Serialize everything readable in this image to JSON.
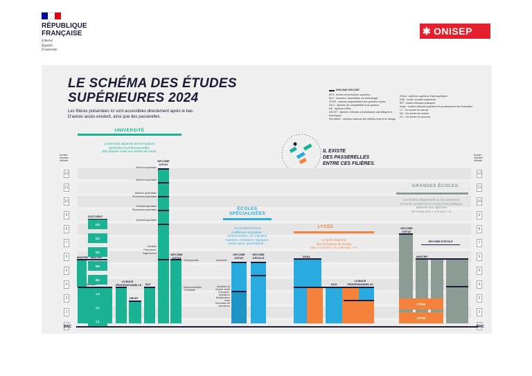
{
  "header": {
    "gov_title_1": "RÉPUBLIQUE",
    "gov_title_2": "FRANÇAISE",
    "motto_1": "Liberté",
    "motto_2": "Égalité",
    "motto_3": "Fraternité",
    "brand": "ONISEP"
  },
  "title_line1": "LE SCHÉMA DES ÉTUDES",
  "title_line2": "SUPÉRIEURES 2024",
  "subtitle_line1": "Les filières présentées ici sont accessibles directement après le bac.",
  "subtitle_line2": "D'autres accès existent, ainsi que des passerelles.",
  "legend": {
    "diplome_delivre": "DIPLÔME DÉLIVRÉ",
    "col1": [
      "BTS : brevet de technicien supérieur",
      "BUT : bachelor universitaire de technologie",
      "CPGE : classes préparatoires aux grandes écoles",
      "DCG : diplôme de comptabilité et de gestion",
      "DE : diplôme d'État",
      "DEUST : diplôme d'études universitaires scientifiques et techniques",
      "DN MADE : diplôme national des métiers d'art et du design"
    ],
    "col2": [
      "DSAA : diplôme supérieur d'arts appliqués",
      "ENS : école normale supérieure",
      "IEP : institut d'études politiques",
      "Inspé : institut national supérieur du professorat et de l'éducation",
      "L1 : 1re année de licence",
      "M1 : 1re année de master",
      "D1 : 1re année de doctorat"
    ]
  },
  "passerelles": {
    "l1": "IL EXISTE",
    "l2": "DES PASSERELLES",
    "l3": "ENTRE CES FILIÈRES."
  },
  "years_label": "Nombre d'années d'études",
  "levels": [
    "12",
    "11",
    "10",
    "9",
    "8",
    "7",
    "6",
    "5",
    "4",
    "3",
    "2",
    "1"
  ],
  "bac": "BAC",
  "universite": {
    "head": "UNIVERSITÉ",
    "desc1": "L'université dispense des formations",
    "desc2": "générales et professionnelles.",
    "desc3": "Elle prépare aussi aux études de santé.",
    "doctorat": "DOCTORAT",
    "master": "MASTER",
    "licence": "LICENCE",
    "licence_pro": "LICENCE PROFESSIONNELLE",
    "deust": "DEUST",
    "but": "BUT",
    "de": "DIPLÔME D'ÉTAT",
    "de2": "DIPLÔME D'ÉTAT",
    "blocks": [
      "D3",
      "D2",
      "D1",
      "M2",
      "M1",
      "L3",
      "L2",
      "L1"
    ],
    "sante": [
      "Médecin spécialisé",
      "Médecin spécialisé",
      "Médecin généraliste",
      "Pharmacien spécialisé",
      "Dentiste spécialisé",
      "Pharmacien spécialisé",
      "Dentiste spécialisé",
      "Dentiste",
      "Pharmacien",
      "Sage-femme"
    ],
    "paramed": [
      "Orthophoniste",
      "Audioprothésiste",
      "Orthoptiste"
    ]
  },
  "ecoles": {
    "head1": "ÉCOLES",
    "head2": "SPÉCIALISÉES",
    "desc1": "Ces écoles forment",
    "desc2": "à différents domaines :",
    "desc3": "communication, art, industrie,",
    "desc4": "tourisme, commerce, transport,",
    "desc5": "social, sport, paramédical…",
    "de": "DIPLÔME D'ÉTAT",
    "de_ecole": "DIPLÔME D'ÉCOLE",
    "side": [
      "Architecte",
      "Assistant de service social",
      "Éducateur, éducatrice",
      "Manipulateur radio",
      "Technicien de laboratoire"
    ]
  },
  "lycee": {
    "head": "LYCÉE",
    "desc1": "Le lycée dispense",
    "desc2": "des formations de niveau",
    "desc3": "bac + 2 ou bac + 3, voire bac + 5.",
    "dsaa": "DSAA",
    "dnmade": "DN MADE",
    "dcg": "DCG",
    "licence_pro": "LICENCE PROFESSIONNELLE",
    "bts": "BTS"
  },
  "grandes_ecoles": {
    "head": "GRANDES ÉCOLES",
    "desc1": "Les écoles d'ingénieurs ou de commerce,",
    "desc2": "les ENS, les IEP et les écoles d'art publiques",
    "desc3": "délivrent des diplômes",
    "desc4": "de niveau bac + 3 et bac + 5.",
    "de": "DIPLÔME D'ÉTAT",
    "de_ecole": "DIPLÔME D'ÉCOLE",
    "master": "MASTER",
    "bachelor": "BACHELOR",
    "cpge": "CPGE"
  },
  "colors": {
    "teal": "#1ab394",
    "blue": "#29abe0",
    "orange": "#f5823a",
    "gray": "#8a9c93",
    "navy": "#1b1b35",
    "red": "#e5202e"
  }
}
